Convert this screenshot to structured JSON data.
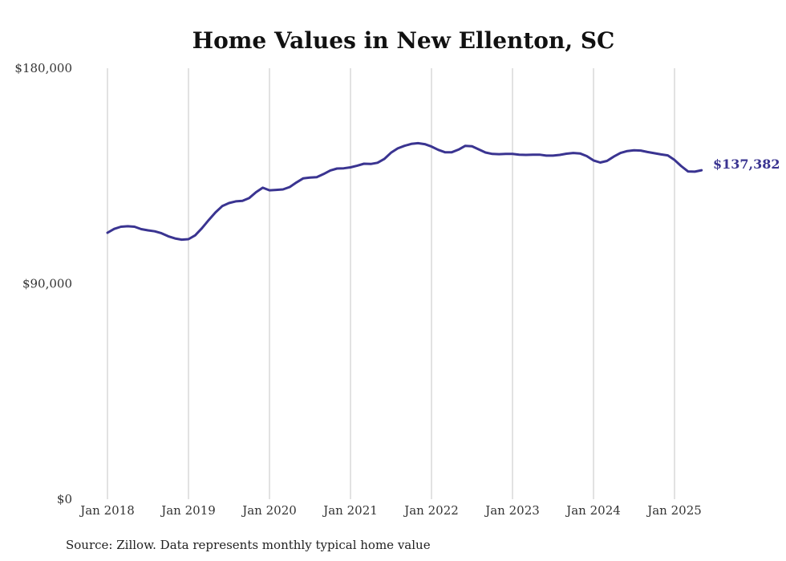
{
  "chart_data": {
    "type": "line",
    "title": "Home Values in New Ellenton, SC",
    "source": "Source: Zillow. Data represents monthly typical home value",
    "xlabel": "",
    "ylabel": "",
    "x_ticks": [
      "Jan 2018",
      "Jan 2019",
      "Jan 2020",
      "Jan 2021",
      "Jan 2022",
      "Jan 2023",
      "Jan 2024",
      "Jan 2025"
    ],
    "y_ticks": [
      "$0",
      "$90,000",
      "$180,000"
    ],
    "y_tick_values": [
      0,
      90000,
      180000
    ],
    "ylim": [
      0,
      180000
    ],
    "xlim": [
      "2018-01",
      "2025-05"
    ],
    "grid": "vertical",
    "line_color": "#3a3491",
    "end_label": "$137,382",
    "series": [
      {
        "values": [
          [
            "2018-01",
            111300
          ],
          [
            "2018-02",
            112900
          ],
          [
            "2018-03",
            113800
          ],
          [
            "2018-04",
            114000
          ],
          [
            "2018-05",
            113800
          ],
          [
            "2018-06",
            112800
          ],
          [
            "2018-07",
            112300
          ],
          [
            "2018-08",
            111900
          ],
          [
            "2018-09",
            111100
          ],
          [
            "2018-10",
            109800
          ],
          [
            "2018-11",
            108900
          ],
          [
            "2018-12",
            108400
          ],
          [
            "2019-01",
            108600
          ],
          [
            "2019-02",
            110200
          ],
          [
            "2019-03",
            113200
          ],
          [
            "2019-04",
            116600
          ],
          [
            "2019-05",
            119800
          ],
          [
            "2019-06",
            122400
          ],
          [
            "2019-07",
            123700
          ],
          [
            "2019-08",
            124400
          ],
          [
            "2019-09",
            124600
          ],
          [
            "2019-10",
            125800
          ],
          [
            "2019-11",
            128200
          ],
          [
            "2019-12",
            130100
          ],
          [
            "2020-01",
            129000
          ],
          [
            "2020-02",
            129200
          ],
          [
            "2020-03",
            129400
          ],
          [
            "2020-04",
            130400
          ],
          [
            "2020-05",
            132300
          ],
          [
            "2020-06",
            134000
          ],
          [
            "2020-07",
            134300
          ],
          [
            "2020-08",
            134500
          ],
          [
            "2020-09",
            135800
          ],
          [
            "2020-10",
            137300
          ],
          [
            "2020-11",
            138100
          ],
          [
            "2020-12",
            138200
          ],
          [
            "2021-01",
            138600
          ],
          [
            "2021-02",
            139300
          ],
          [
            "2021-03",
            140100
          ],
          [
            "2021-04",
            140000
          ],
          [
            "2021-05",
            140500
          ],
          [
            "2021-06",
            142100
          ],
          [
            "2021-07",
            144700
          ],
          [
            "2021-08",
            146500
          ],
          [
            "2021-09",
            147600
          ],
          [
            "2021-10",
            148400
          ],
          [
            "2021-11",
            148700
          ],
          [
            "2021-12",
            148300
          ],
          [
            "2022-01",
            147300
          ],
          [
            "2022-02",
            145900
          ],
          [
            "2022-03",
            144900
          ],
          [
            "2022-04",
            144900
          ],
          [
            "2022-05",
            146000
          ],
          [
            "2022-06",
            147600
          ],
          [
            "2022-07",
            147400
          ],
          [
            "2022-08",
            146100
          ],
          [
            "2022-09",
            144800
          ],
          [
            "2022-10",
            144200
          ],
          [
            "2022-11",
            144100
          ],
          [
            "2022-12",
            144200
          ],
          [
            "2023-01",
            144200
          ],
          [
            "2023-02",
            143900
          ],
          [
            "2023-03",
            143800
          ],
          [
            "2023-04",
            143900
          ],
          [
            "2023-05",
            143900
          ],
          [
            "2023-06",
            143500
          ],
          [
            "2023-07",
            143500
          ],
          [
            "2023-08",
            143800
          ],
          [
            "2023-09",
            144300
          ],
          [
            "2023-10",
            144600
          ],
          [
            "2023-11",
            144400
          ],
          [
            "2023-12",
            143300
          ],
          [
            "2024-01",
            141500
          ],
          [
            "2024-02",
            140600
          ],
          [
            "2024-03",
            141300
          ],
          [
            "2024-04",
            143100
          ],
          [
            "2024-05",
            144600
          ],
          [
            "2024-06",
            145400
          ],
          [
            "2024-07",
            145700
          ],
          [
            "2024-08",
            145600
          ],
          [
            "2024-09",
            145000
          ],
          [
            "2024-10",
            144500
          ],
          [
            "2024-11",
            144000
          ],
          [
            "2024-12",
            143600
          ],
          [
            "2025-01",
            141700
          ],
          [
            "2025-02",
            139100
          ],
          [
            "2025-03",
            136900
          ],
          [
            "2025-04",
            136800
          ],
          [
            "2025-05",
            137382
          ]
        ]
      }
    ]
  }
}
